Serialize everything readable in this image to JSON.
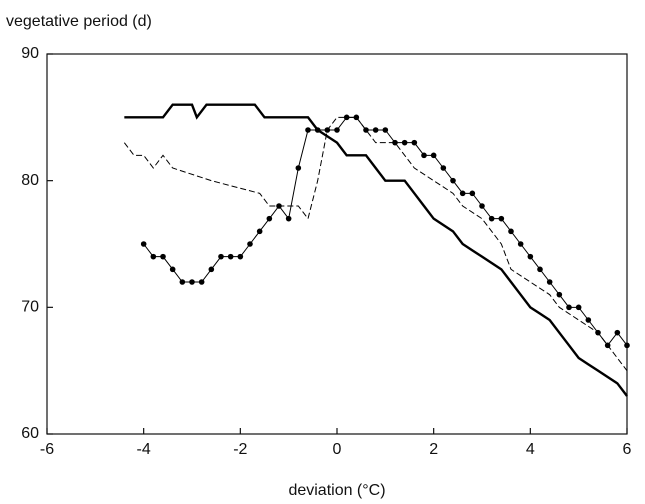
{
  "chart_data": {
    "type": "line",
    "y_label": "vegetative period (d)",
    "x_label": "deviation (°C)",
    "xlim": [
      -6,
      6
    ],
    "xticks": [
      -6,
      -4,
      -2,
      0,
      2,
      4,
      6
    ],
    "ylim": [
      60,
      90
    ],
    "yticks": [
      60,
      70,
      80,
      90
    ],
    "grid": false,
    "series": [
      {
        "color": "#000000",
        "style": "solid-thick",
        "x": [
          -4.4,
          -3.6,
          -3.4,
          -3.0,
          -2.9,
          -2.7,
          -1.7,
          -1.5,
          -0.6,
          -0.4,
          0.0,
          0.2,
          0.6,
          0.8,
          1.0,
          1.4,
          1.6,
          1.8,
          2.0,
          2.2,
          2.4,
          2.6,
          2.8,
          3.0,
          3.2,
          3.4,
          3.6,
          3.8,
          4.0,
          4.2,
          4.4,
          4.6,
          4.8,
          5.0,
          5.2,
          5.4,
          5.6,
          5.8,
          6.0
        ],
        "values": [
          85,
          85,
          86,
          86,
          85,
          86,
          86,
          85,
          85,
          84,
          83,
          82,
          82,
          81,
          80,
          80,
          79,
          78,
          77,
          76.5,
          76,
          75,
          74.5,
          74,
          73.5,
          73,
          72,
          71,
          70,
          69.5,
          69,
          68,
          67,
          66,
          65.5,
          65,
          64.5,
          64,
          63
        ]
      },
      {
        "color": "#000000",
        "style": "dashed",
        "x": [
          -4.4,
          -4.2,
          -4.0,
          -3.8,
          -3.6,
          -3.4,
          -2.6,
          -1.6,
          -1.4,
          -0.8,
          -0.6,
          -0.4,
          -0.2,
          0.0,
          0.4,
          0.6,
          0.8,
          1.2,
          1.4,
          1.6,
          2.0,
          2.4,
          2.6,
          3.0,
          3.4,
          3.6,
          4.0,
          4.4,
          4.6,
          5.0,
          5.4,
          5.6,
          6.0
        ],
        "values": [
          83,
          82,
          82,
          81,
          82,
          81,
          80,
          79,
          78,
          78,
          77,
          80,
          84,
          85,
          85,
          84,
          83,
          83,
          82,
          81,
          80,
          79,
          78,
          77,
          75,
          73,
          72,
          71,
          70,
          69,
          68,
          67,
          65
        ]
      },
      {
        "color": "#000000",
        "style": "markers",
        "x": [
          -4.0,
          -3.8,
          -3.6,
          -3.4,
          -3.2,
          -3.0,
          -2.8,
          -2.6,
          -2.4,
          -2.2,
          -2.0,
          -1.8,
          -1.6,
          -1.4,
          -1.2,
          -1.0,
          -0.8,
          -0.6,
          -0.4,
          -0.2,
          0.0,
          0.2,
          0.4,
          0.6,
          0.8,
          1.0,
          1.2,
          1.4,
          1.6,
          1.8,
          2.0,
          2.2,
          2.4,
          2.6,
          2.8,
          3.0,
          3.2,
          3.4,
          3.6,
          3.8,
          4.0,
          4.2,
          4.4,
          4.6,
          4.8,
          5.0,
          5.2,
          5.4,
          5.6,
          5.8,
          6.0
        ],
        "values": [
          75,
          74,
          74,
          73,
          72,
          72,
          72,
          73,
          74,
          74,
          74,
          75,
          76,
          77,
          78,
          77,
          81,
          84,
          84,
          84,
          84,
          85,
          85,
          84,
          84,
          84,
          83,
          83,
          83,
          82,
          82,
          81,
          80,
          79,
          79,
          78,
          77,
          77,
          76,
          75,
          74,
          73,
          72,
          71,
          70,
          70,
          69,
          68,
          67,
          68,
          67
        ]
      }
    ]
  }
}
